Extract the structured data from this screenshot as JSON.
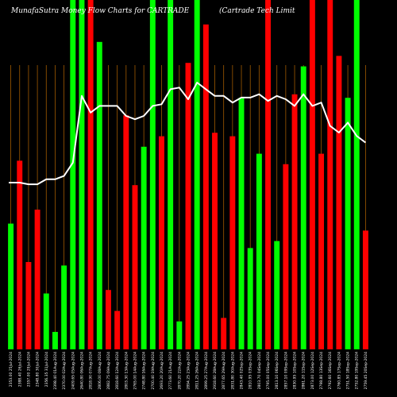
{
  "header": {
    "left_title": "MunafaSutra  Money  Flow  Charts for CARTRADE",
    "right_title": "(Cartrade    Tech Limit"
  },
  "chart_data": {
    "type": "bar",
    "title": "MunafaSutra  Money  Flow  Charts for CARTRADE",
    "xlabel": "",
    "ylabel": "",
    "grid": "vertical",
    "up_color": "#00ff00",
    "down_color": "#ff0000",
    "line_color": "#ffffff",
    "background": "#000000",
    "grid_color": "#a05a00",
    "ylim": [
      0,
      100
    ],
    "line_ylim": [
      0,
      100
    ],
    "categories": [
      "2353.00 25Jul-2024",
      "2388.40 26Jul-2024",
      "2357.00 29Jul-2024",
      "2348.80 30Jul-2024",
      "2356.35 31Jul-2024",
      "2398.40 01Aug-2024",
      "2370.00 02Aug-2024",
      "2409.65 05Aug-2024",
      "2640.80 06Aug-2024",
      "2818.90 07Aug-2024",
      "2806.00 08Aug-2024",
      "2882.75 09Aug-2024",
      "2818.60 12Aug-2024",
      "2803.30 13Aug-2024",
      "2765.00 14Aug-2024",
      "2748.80 16Aug-2024",
      "2700.40 19Aug-2024",
      "2693.20 20Aug-2024",
      "2773.60 21Aug-2024",
      "2870.20 22Aug-2024",
      "2894.25 23Aug-2024",
      "2811.25 26Aug-2024",
      "2899.25 27Aug-2024",
      "2918.60 28Aug-2024",
      "2877.65 29Aug-2024",
      "2831.80 30Aug-2024",
      "2843.40 02Sep-2024",
      "2810.95 03Sep-2024",
      "2803.70 04Sep-2024",
      "2795.00 05Sep-2024",
      "2813.10 06Sep-2024",
      "2857.10 09Sep-2024",
      "2830.95 10Sep-2024",
      "2861.20 11Sep-2024",
      "2873.00 12Sep-2024",
      "2798.80 13Sep-2024",
      "2792.60 16Sep-2024",
      "2760.85 17Sep-2024",
      "2751.50 18Sep-2024",
      "2752.80 19Sep-2024",
      "2759.45 20Sep-2024"
    ],
    "series": [
      {
        "type": "bar",
        "values": [
          {
            "v": 36,
            "dir": "up"
          },
          {
            "v": 54,
            "dir": "down"
          },
          {
            "v": 25,
            "dir": "down"
          },
          {
            "v": 40,
            "dir": "down"
          },
          {
            "v": 16,
            "dir": "up"
          },
          {
            "v": 5,
            "dir": "up"
          },
          {
            "v": 24,
            "dir": "up"
          },
          {
            "v": 100,
            "dir": "up"
          },
          {
            "v": 100,
            "dir": "up"
          },
          {
            "v": 100,
            "dir": "down"
          },
          {
            "v": 88,
            "dir": "up"
          },
          {
            "v": 17,
            "dir": "down"
          },
          {
            "v": 11,
            "dir": "down"
          },
          {
            "v": 67,
            "dir": "down"
          },
          {
            "v": 47,
            "dir": "down"
          },
          {
            "v": 58,
            "dir": "up"
          },
          {
            "v": 100,
            "dir": "up"
          },
          {
            "v": 61,
            "dir": "down"
          },
          {
            "v": 100,
            "dir": "up"
          },
          {
            "v": 8,
            "dir": "up"
          },
          {
            "v": 82,
            "dir": "down"
          },
          {
            "v": 100,
            "dir": "up"
          },
          {
            "v": 93,
            "dir": "down"
          },
          {
            "v": 62,
            "dir": "down"
          },
          {
            "v": 9,
            "dir": "down"
          },
          {
            "v": 61,
            "dir": "down"
          },
          {
            "v": 72,
            "dir": "up"
          },
          {
            "v": 29,
            "dir": "up"
          },
          {
            "v": 56,
            "dir": "up"
          },
          {
            "v": 100,
            "dir": "down"
          },
          {
            "v": 31,
            "dir": "up"
          },
          {
            "v": 53,
            "dir": "down"
          },
          {
            "v": 73,
            "dir": "down"
          },
          {
            "v": 81,
            "dir": "up"
          },
          {
            "v": 100,
            "dir": "down"
          },
          {
            "v": 56,
            "dir": "down"
          },
          {
            "v": 100,
            "dir": "down"
          },
          {
            "v": 84,
            "dir": "down"
          },
          {
            "v": 72,
            "dir": "up"
          },
          {
            "v": 100,
            "dir": "up"
          },
          {
            "v": 34,
            "dir": "down"
          }
        ]
      },
      {
        "type": "line",
        "values": [
          50,
          50,
          49.5,
          49.5,
          51,
          51,
          52,
          56,
          76,
          71,
          73,
          73,
          73,
          70,
          69,
          70,
          73,
          73.5,
          78,
          78.5,
          75,
          80,
          78,
          76,
          76,
          74,
          75.5,
          75.5,
          76.5,
          74.5,
          76,
          75,
          73,
          76.5,
          73,
          74,
          67,
          65,
          68,
          64,
          62
        ]
      }
    ]
  }
}
